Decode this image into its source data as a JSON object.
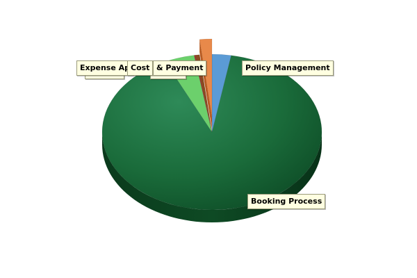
{
  "chart_data": {
    "type": "pie",
    "title": "",
    "slices": [
      {
        "label": "Policy Management",
        "value": 2.8,
        "color": "#5b9bd5"
      },
      {
        "label": "Booking Process",
        "value": 90.2,
        "color": "#1a6b3a"
      },
      {
        "label": "Expense Approval process",
        "value": 4.4,
        "color": "#6cd06c"
      },
      {
        "label": "Cost Control",
        "value": 0.2,
        "color": "#a03030"
      },
      {
        "label": "Travel & Payment",
        "value": 0.6,
        "color": "#8b4a1f"
      },
      {
        "label": "Expense Reporting",
        "value": 1.8,
        "color": "#e8894a",
        "exploded": true
      }
    ],
    "legend": "none",
    "style": "3d"
  },
  "labels": {
    "policy": "Policy Management",
    "booking": "Booking Process",
    "expense_front": "Expense Ap",
    "expense_back": "Expense",
    "cost": "Cost",
    "process_back": "process",
    "payment": "& Payment"
  }
}
